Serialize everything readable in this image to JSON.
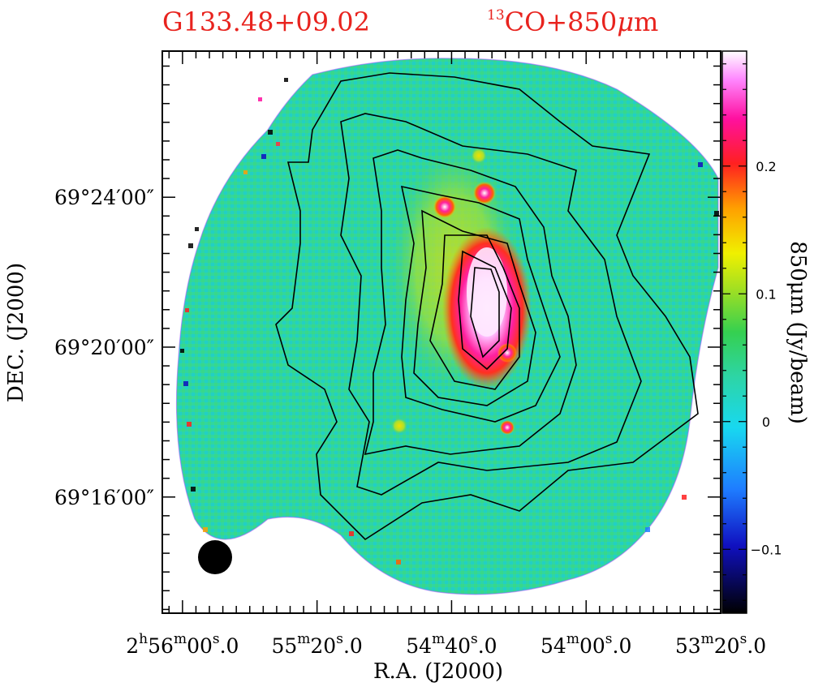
{
  "title_left": "G133.48+09.02",
  "title_right": {
    "sup": "13",
    "main": "CO+850",
    "mu": "μ",
    "m": "m"
  },
  "chart_data": {
    "type": "heatmap",
    "description_kind": "850um intensity image with 13CO contour overlay",
    "x_axis": {
      "label": "R.A.  (J2000)",
      "ticks": [
        {
          "h": "2",
          "hs": "h",
          "m": "56",
          "ms": "m",
          "s": "00",
          "ss": "s",
          "f": ".0"
        },
        {
          "h": "",
          "hs": "",
          "m": "55",
          "ms": "m",
          "s": "20",
          "ss": "s",
          "f": ".0"
        },
        {
          "h": "",
          "hs": "",
          "m": "54",
          "ms": "m",
          "s": "40",
          "ss": "s",
          "f": ".0"
        },
        {
          "h": "",
          "hs": "",
          "m": "54",
          "ms": "m",
          "s": "00",
          "ss": "s",
          "f": ".0"
        },
        {
          "h": "",
          "hs": "",
          "m": "53",
          "ms": "m",
          "s": "20",
          "ss": "s",
          "f": ".0"
        }
      ],
      "tick_values_sec": [
        10560,
        10520,
        10480,
        10440,
        10400
      ],
      "range_sec": [
        10566,
        10400
      ]
    },
    "y_axis": {
      "label": "DEC.  (J2000)",
      "ticks": [
        "69°24′00″",
        "69°20′00″",
        "69°16′00″"
      ],
      "tick_values_arcmin": [
        24,
        20,
        16
      ],
      "range_arcmin": [
        12.9,
        27.9
      ]
    },
    "colorbar": {
      "label": "850μm  (Jy/beam)",
      "ticks": [
        "0.2",
        "0.1",
        "0",
        "−0.1"
      ],
      "tick_values": [
        0.2,
        0.1,
        0.0,
        -0.1
      ],
      "range": [
        -0.15,
        0.29
      ]
    },
    "beam": "filled black circle, lower-left",
    "contours": "13CO integrated intensity, 8 nested levels, peak near 2h54m34s +69°20′"
  },
  "colors": {
    "title": "#e8231e",
    "axes": "#000000",
    "map_background": "#2dd5a6"
  }
}
